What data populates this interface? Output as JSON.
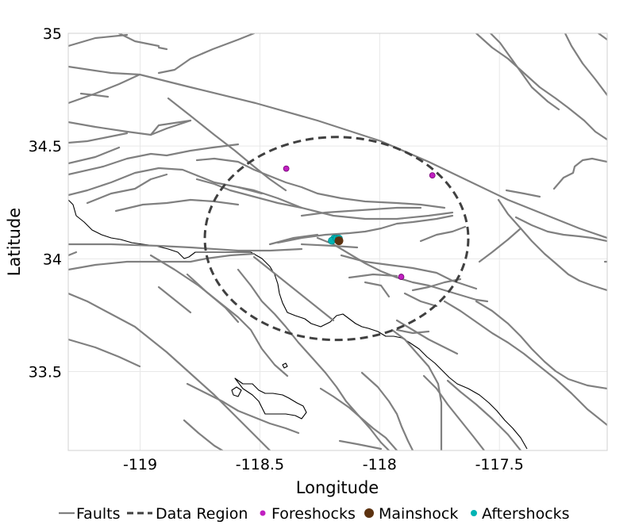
{
  "chart_data": {
    "type": "scatter",
    "title": "",
    "xlabel": "Longitude",
    "ylabel": "Latitude",
    "xlim": [
      -119.3,
      -117.05
    ],
    "ylim": [
      33.15,
      35.0
    ],
    "x_ticks": [
      "-119",
      "-118.5",
      "-118",
      "-117.5"
    ],
    "x_tick_values": [
      -119,
      -118.5,
      -118,
      -117.5
    ],
    "y_ticks": [
      "35",
      "34.5",
      "34",
      "33.5"
    ],
    "y_tick_values": [
      35,
      34.5,
      34,
      33.5
    ],
    "grid": true,
    "legend_placement": "bottom",
    "legend": {
      "faults": "Faults",
      "data_region": "Data Region",
      "foreshocks": "Foreshocks",
      "mainshock": "Mainshock",
      "aftershocks": "Aftershocks"
    },
    "colors": {
      "faults": "#808080",
      "data_region": "#404040",
      "foreshocks": "#c020c0",
      "mainshock": "#5c3210",
      "aftershocks": "#00b4b4",
      "coast": "#000000"
    },
    "data_region": {
      "center": [
        -118.18,
        34.09
      ],
      "lon_radius": 0.55,
      "lat_radius": 0.45
    },
    "foreshocks": [
      {
        "lon": -118.39,
        "lat": 34.4
      },
      {
        "lon": -117.78,
        "lat": 34.37
      },
      {
        "lon": -117.91,
        "lat": 33.92
      }
    ],
    "mainshock": {
      "lon": -118.17,
      "lat": 34.08
    },
    "aftershocks": [
      {
        "lon": -118.19,
        "lat": 34.09
      },
      {
        "lon": -118.2,
        "lat": 34.08
      },
      {
        "lon": -118.18,
        "lat": 34.09
      },
      {
        "lon": -118.17,
        "lat": 34.09
      }
    ]
  }
}
